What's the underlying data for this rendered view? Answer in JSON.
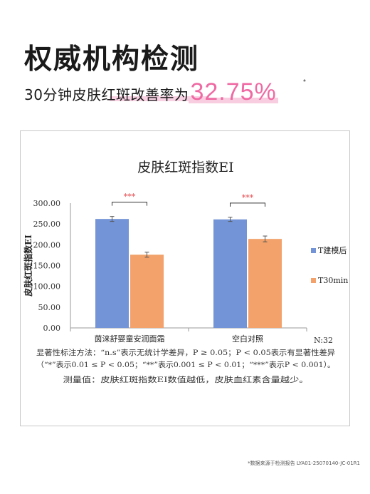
{
  "headline": "权威机构检测",
  "subline": {
    "text": "30分钟皮肤红斑改善率为",
    "value": "32.75%",
    "asterisk": "*"
  },
  "chart_data": {
    "type": "bar",
    "title": "皮肤红斑指数EI",
    "ylabel": "皮肤红斑指数EI",
    "xlabel": "",
    "ylim": [
      0,
      300
    ],
    "yticks": [
      "0.00",
      "50.00",
      "100.00",
      "150.00",
      "200.00",
      "250.00",
      "300.00"
    ],
    "categories": [
      "茵涞舒婴童安润面霜",
      "空白对照"
    ],
    "series": [
      {
        "name": "T建模后",
        "values": [
          262,
          261
        ],
        "errors": [
          6,
          5
        ],
        "color": "#7394d6"
      },
      {
        "name": "T30min",
        "values": [
          176,
          214
        ],
        "errors": [
          6,
          7
        ],
        "color": "#f2a26a"
      }
    ],
    "significance": [
      "***",
      "***"
    ],
    "sample_note": "N:32",
    "legend_position": "right",
    "grid": false,
    "notes": [
      "显著性标注方法：“n.s”表示无统计学差异，P ≥ 0.05；P < 0.05表示有显著性差异",
      "（“*”表示0.01 ≤ P < 0.05；“**”表示0.001 ≤ P < 0.01；“***”表示P < 0.001）。",
      "测量值：皮肤红斑指数EI数值越低，皮肤血红素含量越少。"
    ]
  },
  "footnote": "*数据来源于检测报告 LYA01-25070140-JC-01R1",
  "colors": {
    "accent": "#ef6aa3",
    "star": "#e8494f"
  }
}
